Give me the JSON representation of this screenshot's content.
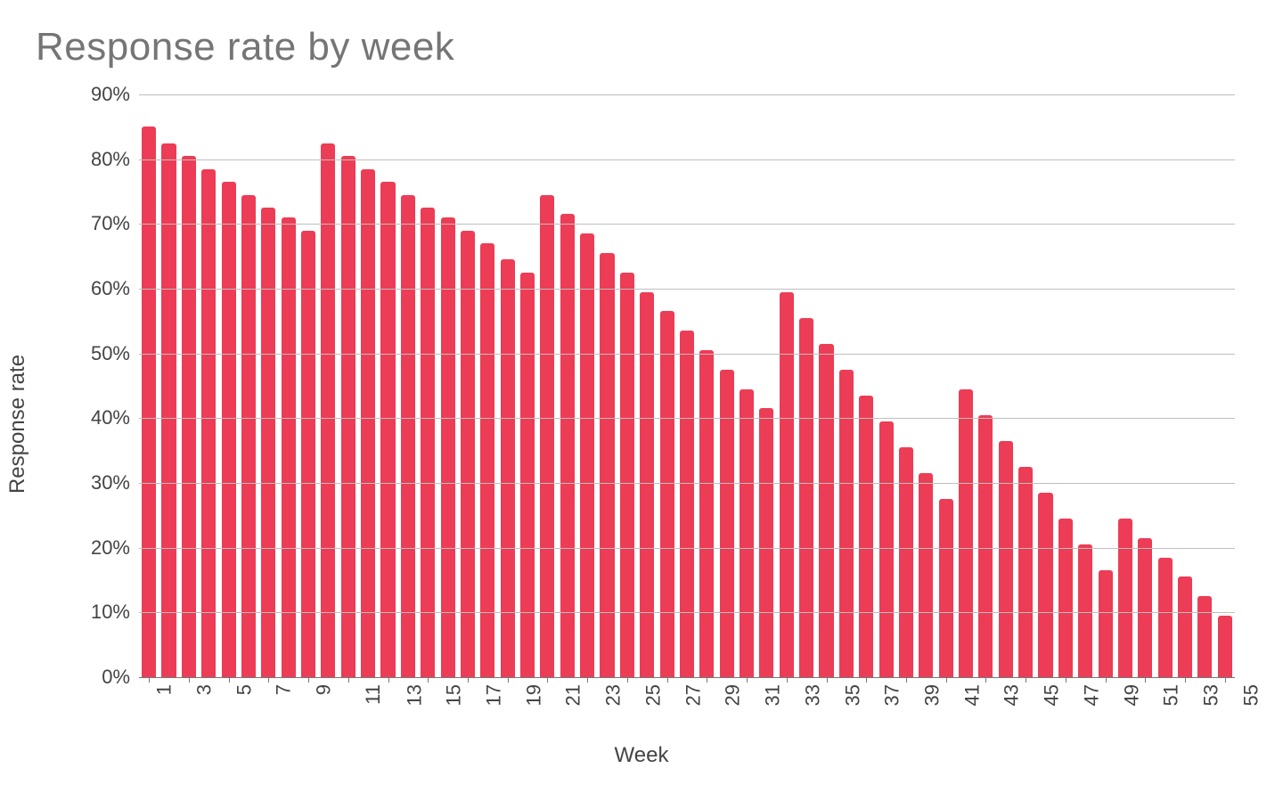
{
  "chart": {
    "type": "bar",
    "title": "Response rate by week",
    "title_fontsize": 44,
    "title_color": "#757575",
    "x_axis_label": "Week",
    "y_axis_label": "Response rate",
    "axis_label_fontsize": 24,
    "axis_label_color": "#444444",
    "tick_label_fontsize": 22,
    "tick_label_color": "#444444",
    "background_color": "#ffffff",
    "grid_color": "#bfbfbf",
    "zero_line_color": "#777777",
    "bar_color": "#ed3c55",
    "bar_gap_ratio": 0.28,
    "y": {
      "min": 0,
      "max": 90,
      "tick_step": 10,
      "tick_format_suffix": "%"
    },
    "x": {
      "tick_start": 1,
      "tick_step": 2,
      "tick_end": 55,
      "tick_rotation_deg": -90
    },
    "categories": [
      1,
      2,
      3,
      4,
      5,
      6,
      7,
      8,
      9,
      10,
      11,
      12,
      13,
      14,
      15,
      16,
      17,
      18,
      19,
      20,
      21,
      22,
      23,
      24,
      25,
      26,
      27,
      28,
      29,
      30,
      31,
      32,
      33,
      34,
      35,
      36,
      37,
      38,
      39,
      40,
      41,
      42,
      43,
      44,
      45,
      46,
      47,
      48,
      49,
      50,
      51,
      52,
      53,
      54,
      55
    ],
    "values": [
      85,
      82.5,
      80.5,
      78.5,
      76.5,
      74.5,
      72.5,
      71,
      69,
      82.5,
      80.5,
      78.5,
      76.5,
      74.5,
      72.5,
      71,
      69,
      67,
      64.5,
      62.5,
      74.5,
      71.5,
      68.5,
      65.5,
      62.5,
      59.5,
      56.5,
      53.5,
      50.5,
      47.5,
      44.5,
      41.5,
      59.5,
      55.5,
      51.5,
      47.5,
      43.5,
      39.5,
      35.5,
      31.5,
      27.5,
      44.5,
      40.5,
      36.5,
      32.5,
      28.5,
      24.5,
      20.5,
      16.5,
      24.5,
      21.5,
      18.5,
      15.5,
      12.5,
      9.5
    ]
  }
}
